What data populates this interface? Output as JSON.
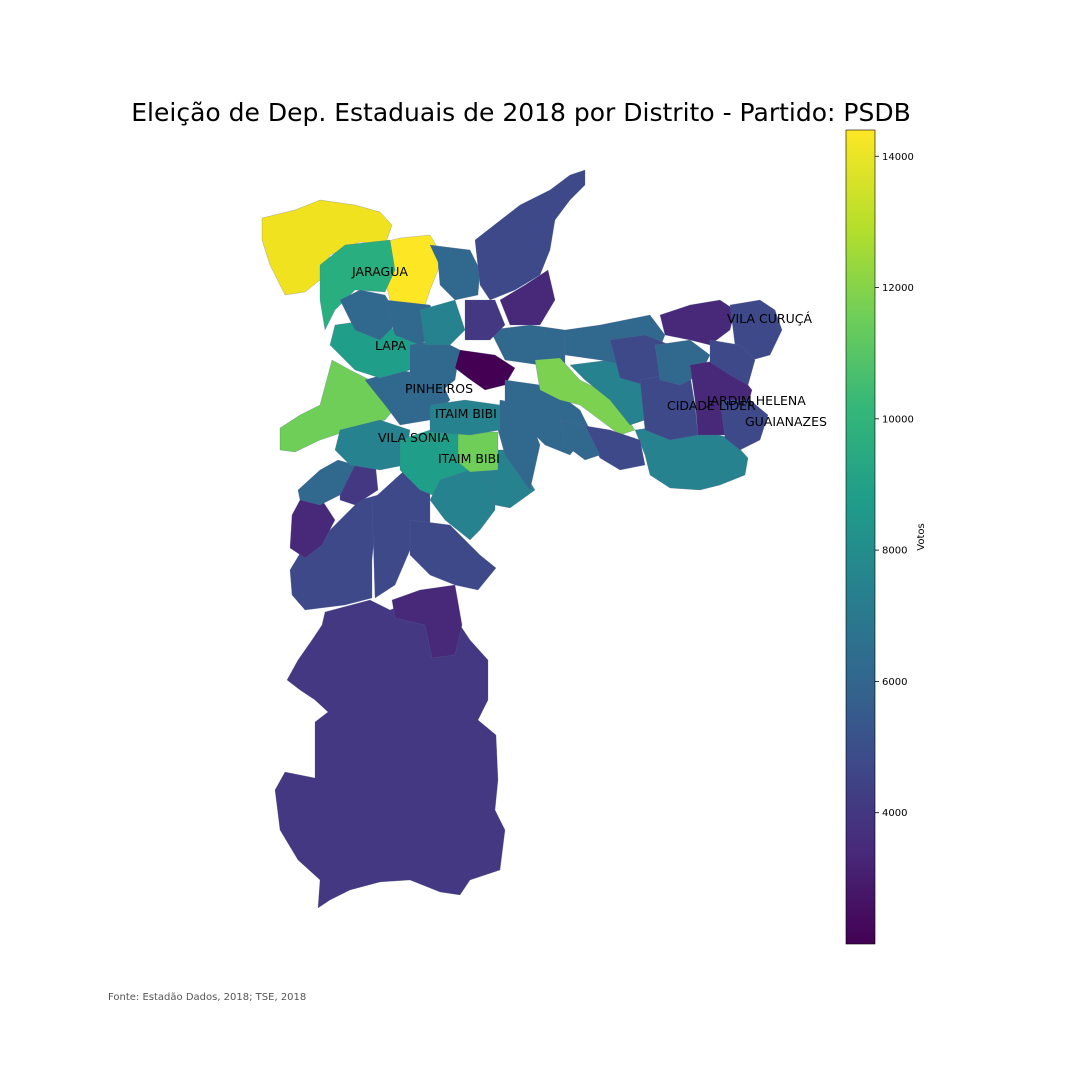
{
  "title": "Eleição de Dep. Estaduais de 2018 por Distrito - Partido: PSDB",
  "source_note": "Fonte: Estadão Dados, 2018; TSE, 2018",
  "colorbar": {
    "label": "Votos",
    "min": 2000,
    "max": 14400,
    "ticks": [
      4000,
      6000,
      8000,
      10000,
      12000,
      14000
    ],
    "tick_labels": [
      "4000",
      "6000",
      "8000",
      "10000",
      "12000",
      "14000"
    ],
    "colormap": "viridis"
  },
  "district_labels": [
    "JARAGUA",
    "LAPA",
    "PINHEIROS",
    "ITAIM BIBI",
    "VILA SONIA",
    "ITAIM BIBI",
    "VILA CURUÇÁ",
    "JARDIM HELENA",
    "CIDADE LIDER",
    "GUAIANAZES"
  ],
  "colors": {
    "viridis": [
      "#440154",
      "#482878",
      "#3e4989",
      "#31688e",
      "#26828e",
      "#1f9e89",
      "#35b779",
      "#6ece58",
      "#b5de2b",
      "#fde725"
    ]
  }
}
